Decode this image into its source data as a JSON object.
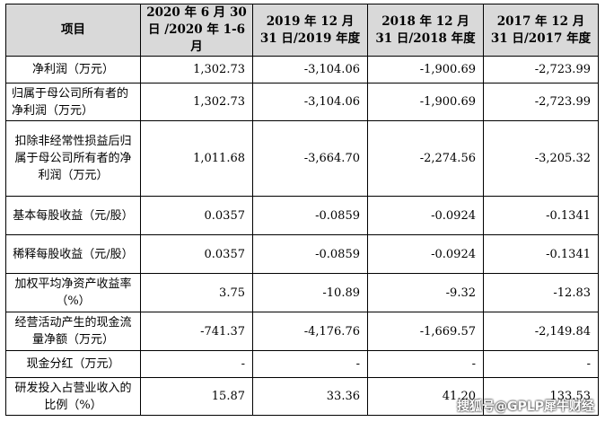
{
  "headers": [
    "项目",
    "2020 年 6 月 30 日 /2020 年 1-6 月",
    "2019 年 12 月 31 日/2019 年度",
    "2018 年 12 月 31 日/2018 年度",
    "2017 年 12 月 31 日/2017 年度"
  ],
  "rows": [
    {
      "label": "净利润（万元）",
      "values": [
        "1,302.73",
        "-3,104.06",
        "-1,900.69",
        "-2,723.99"
      ]
    },
    {
      "label": "归属于母公司所有者的净利润（万元）",
      "values": [
        "1,302.73",
        "-3,104.06",
        "-1,900.69",
        "-2,723.99"
      ]
    },
    {
      "label": "扣除非经常性损益后归属于母公司所有者的净利润（万元）",
      "values": [
        "1,011.68",
        "-3,664.70",
        "-2,274.56",
        "-3,205.32"
      ]
    },
    {
      "label": "基本每股收益（元/股）",
      "values": [
        "0.0357",
        "-0.0859",
        "-0.0924",
        "-0.1341"
      ]
    },
    {
      "label": "稀释每股收益（元/股）",
      "values": [
        "0.0357",
        "-0.0859",
        "-0.0924",
        "-0.1341"
      ]
    },
    {
      "label": "加权平均净资产收益率（%）",
      "values": [
        "3.75",
        "-10.89",
        "-9.32",
        "-12.83"
      ]
    },
    {
      "label": "经营活动产生的现金流量净额（万元）",
      "values": [
        "-741.37",
        "-4,176.76",
        "-1,669.57",
        "-2,149.84"
      ]
    },
    {
      "label": "现金分红（万元）",
      "values": [
        "-",
        "-",
        "-",
        "-"
      ]
    },
    {
      "label": "研发投入占营业收入的比例（%）",
      "values": [
        "15.87",
        "33.36",
        "41.20",
        "133.53"
      ]
    }
  ],
  "watermark": "搜狐号@GPLP犀牛财经"
}
